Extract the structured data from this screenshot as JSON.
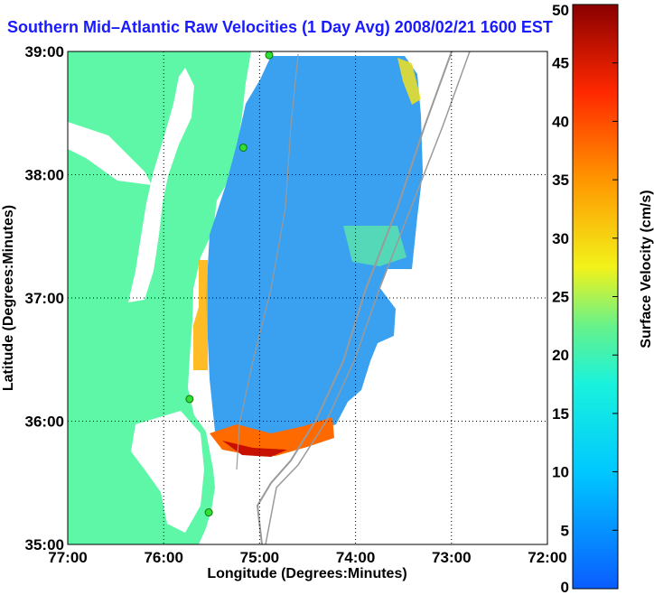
{
  "chart_data": {
    "type": "heatmap",
    "title": "Southern Mid–Atlantic Raw Velocities (1 Day Avg) 2008/02/21 1600 EST",
    "xlabel": "Longitude (Degrees:Minutes)",
    "ylabel": "Latitude (Degrees:Minutes)",
    "x_ticks": [
      "77:00",
      "76:00",
      "75:00",
      "74:00",
      "73:00",
      "72:00"
    ],
    "y_ticks": [
      "39:00",
      "38:00",
      "37:00",
      "36:00",
      "35:00"
    ],
    "xlim": [
      -77,
      -72
    ],
    "ylim": [
      35,
      39
    ],
    "grid": true,
    "colorbar": {
      "label": "Surface Velocity (cm/s)",
      "min": 0,
      "max": 50,
      "ticks": [
        0,
        5,
        10,
        15,
        20,
        25,
        30,
        35,
        40,
        45,
        50
      ]
    },
    "colors": {
      "land": "#5ef7a8",
      "title": "#1a1aff",
      "bathymetry": "#9a9a9a",
      "site_marker": "#33dd33"
    },
    "radar_sites": [
      {
        "lon": -74.9,
        "lat": 38.97
      },
      {
        "lon": -75.17,
        "lat": 38.22
      },
      {
        "lon": -75.73,
        "lat": 36.18
      },
      {
        "lon": -75.53,
        "lat": 35.26
      }
    ]
  }
}
